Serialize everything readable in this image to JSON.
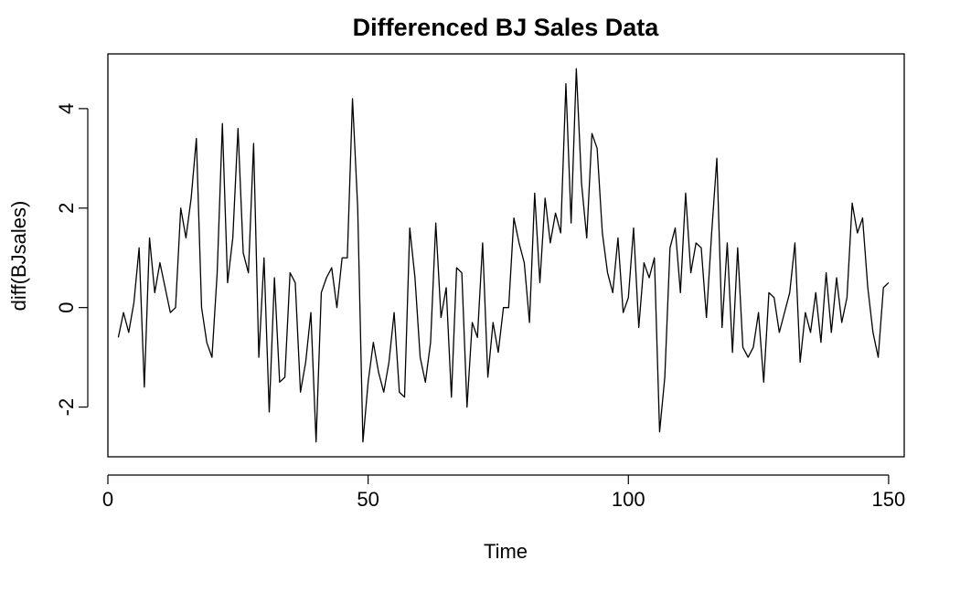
{
  "chart_data": {
    "type": "line",
    "title": "Differenced BJ Sales Data",
    "xlabel": "Time",
    "ylabel": "diff(BJsales)",
    "xlim": [
      0,
      153
    ],
    "ylim": [
      -3,
      5.1
    ],
    "x_ticks": [
      0,
      50,
      100,
      150
    ],
    "y_ticks": [
      -2,
      0,
      2,
      4
    ],
    "grid": false,
    "legend": "none",
    "line_color": "#000000",
    "x_start": 2,
    "series": [
      {
        "values": [
          -0.6,
          -0.1,
          -0.5,
          0.1,
          1.2,
          -1.6,
          1.4,
          0.3,
          0.9,
          0.4,
          -0.1,
          0.0,
          2.0,
          1.4,
          2.2,
          3.4,
          0.0,
          -0.7,
          -1.0,
          0.7,
          3.7,
          0.5,
          1.4,
          3.6,
          1.1,
          0.7,
          3.3,
          -1.0,
          1.0,
          -2.1,
          0.6,
          -1.5,
          -1.4,
          0.7,
          0.5,
          -1.7,
          -1.1,
          -0.1,
          -2.7,
          0.3,
          0.6,
          0.8,
          0.0,
          1.0,
          1.0,
          4.2,
          2.0,
          -2.7,
          -1.5,
          -0.7,
          -1.3,
          -1.7,
          -1.1,
          -0.1,
          -1.7,
          -1.8,
          1.6,
          0.6,
          -1.0,
          -1.5,
          -0.7,
          1.7,
          -0.2,
          0.4,
          -1.8,
          0.8,
          0.7,
          -2.0,
          -0.3,
          -0.6,
          1.3,
          -1.4,
          -0.3,
          -0.9,
          0.0,
          0.0,
          1.8,
          1.3,
          0.9,
          -0.3,
          2.3,
          0.5,
          2.2,
          1.3,
          1.9,
          1.5,
          4.5,
          1.7,
          4.8,
          2.5,
          1.4,
          3.5,
          3.2,
          1.5,
          0.7,
          0.3,
          1.4,
          -0.1,
          0.2,
          1.6,
          -0.4,
          0.9,
          0.6,
          1.0,
          -2.5,
          -1.4,
          1.2,
          1.6,
          0.3,
          2.3,
          0.7,
          1.3,
          1.2,
          -0.2,
          1.5,
          3.0,
          -0.4,
          1.3,
          -0.9,
          1.2,
          -0.8,
          -1.0,
          -0.8,
          -0.1,
          -1.5,
          0.3,
          0.2,
          -0.5,
          -0.1,
          0.3,
          1.3,
          -1.1,
          -0.1,
          -0.5,
          0.3,
          -0.7,
          0.7,
          -0.5,
          0.6,
          -0.3,
          0.2,
          2.1,
          1.5,
          1.8,
          0.4,
          -0.5,
          -1.0,
          0.4,
          0.5
        ]
      }
    ]
  }
}
